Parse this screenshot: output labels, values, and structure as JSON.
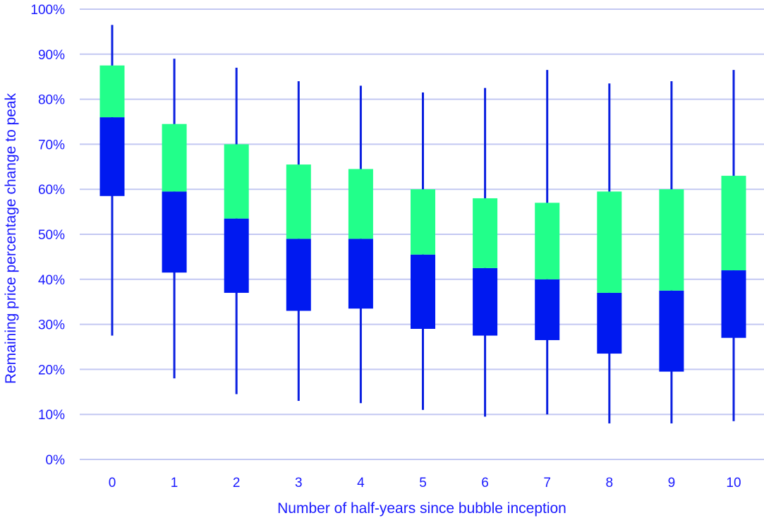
{
  "colors": {
    "lower_box": "#0019f0",
    "upper_box": "#22ff8a",
    "whisker": "#0a1fe0",
    "grid": "#c3c8f2",
    "text": "#1a1aff"
  },
  "chart_data": {
    "type": "box",
    "title": "",
    "xlabel": "Number of half-years since bubble inception",
    "ylabel": "Remaining price percentage change to peak",
    "ylim": [
      0,
      100
    ],
    "y_ticks": [
      "0%",
      "10%",
      "20%",
      "30%",
      "40%",
      "50%",
      "60%",
      "70%",
      "80%",
      "90%",
      "100%"
    ],
    "y_tick_values": [
      0,
      10,
      20,
      30,
      40,
      50,
      60,
      70,
      80,
      90,
      100
    ],
    "grid": "horizontal",
    "legend": "none",
    "categories": [
      "0",
      "1",
      "2",
      "3",
      "4",
      "5",
      "6",
      "7",
      "8",
      "9",
      "10"
    ],
    "series": [
      {
        "stats": [
          {
            "min": 27.5,
            "q1": 58.5,
            "median": 76.0,
            "q3": 87.5,
            "max": 96.5
          },
          {
            "min": 18.0,
            "q1": 41.5,
            "median": 59.5,
            "q3": 74.5,
            "max": 89.0
          },
          {
            "min": 14.5,
            "q1": 37.0,
            "median": 53.5,
            "q3": 70.0,
            "max": 87.0
          },
          {
            "min": 13.0,
            "q1": 33.0,
            "median": 49.0,
            "q3": 65.5,
            "max": 84.0
          },
          {
            "min": 12.5,
            "q1": 33.5,
            "median": 49.0,
            "q3": 64.5,
            "max": 83.0
          },
          {
            "min": 11.0,
            "q1": 29.0,
            "median": 45.5,
            "q3": 60.0,
            "max": 81.5
          },
          {
            "min": 9.5,
            "q1": 27.5,
            "median": 42.5,
            "q3": 58.0,
            "max": 82.5
          },
          {
            "min": 10.0,
            "q1": 26.5,
            "median": 40.0,
            "q3": 57.0,
            "max": 86.5
          },
          {
            "min": 8.0,
            "q1": 23.5,
            "median": 37.0,
            "q3": 59.5,
            "max": 83.5
          },
          {
            "min": 8.0,
            "q1": 19.5,
            "median": 37.5,
            "q3": 60.0,
            "max": 84.0
          },
          {
            "min": 8.5,
            "q1": 27.0,
            "median": 42.0,
            "q3": 63.0,
            "max": 86.5
          }
        ]
      }
    ]
  }
}
